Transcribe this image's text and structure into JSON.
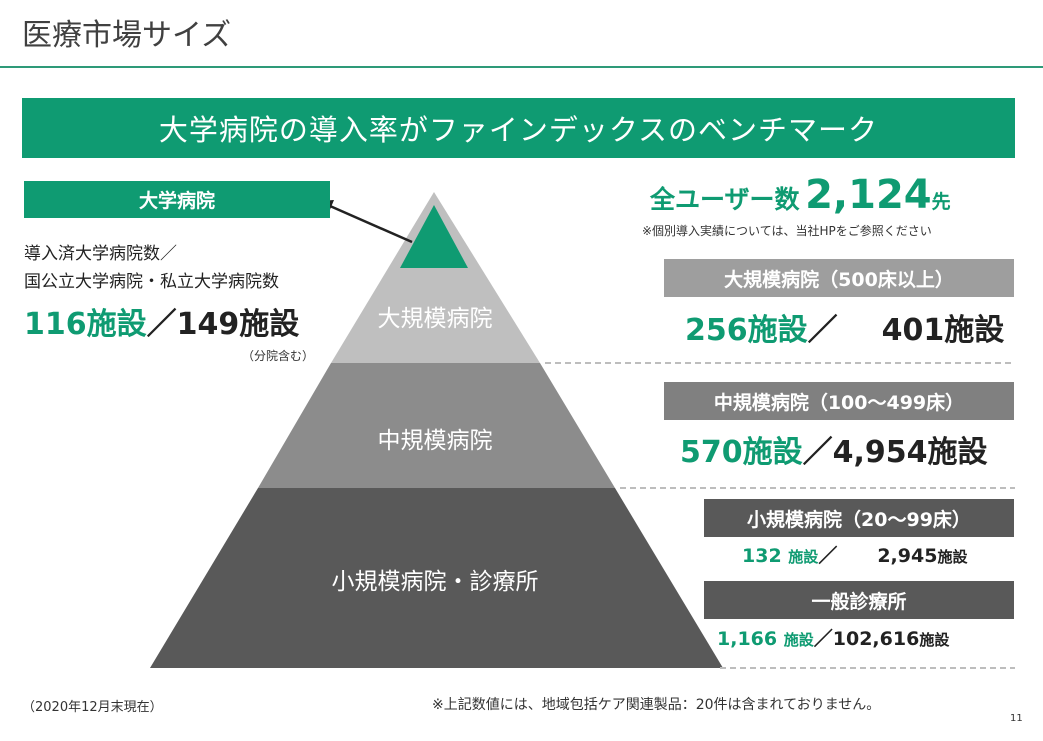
{
  "header": {
    "title": "医療市場サイズ"
  },
  "banner": {
    "text": "大学病院の導入率がファインデックスのベンチマーク"
  },
  "left": {
    "label": "大学病院",
    "desc_line1": "導入済大学病院数／",
    "desc_line2": "国公立大学病院・私立大学病院数",
    "adopted": "116施設",
    "separator": "／",
    "total": "149施設",
    "note": "（分院含む）"
  },
  "pyramid": {
    "top_label": "大規模病院",
    "middle_label": "中規模病院",
    "bottom_label": "小規模病院・診療所"
  },
  "right": {
    "users_prefix": "全ユーザー数",
    "users_count": "2,124",
    "users_suffix": "先",
    "users_note": "※個別導入実績については、当社HPをご参照ください",
    "large": {
      "label": "大規模病院（500床以上）",
      "adopted": "256施設",
      "sep": "／",
      "total": "401施設"
    },
    "medium": {
      "label": "中規模病院（100～499床）",
      "adopted": "570施設",
      "sep": "／",
      "total": "4,954施設"
    },
    "small": {
      "label": "小規模病院（20～99床）",
      "adopted_num": "132",
      "adopted_unit": "施設",
      "sep": "／",
      "total_num": "2,945",
      "total_unit": "施設"
    },
    "clinic": {
      "label": "一般診療所",
      "adopted_num": "1,166",
      "adopted_unit": "施設",
      "sep": "／",
      "total_num": "102,616",
      "total_unit": "施設"
    }
  },
  "footer": {
    "date_note": "（2020年12月末現在）",
    "exclusion_note": "※上記数値には、地域包括ケア関連製品：20件は含まれておりません。",
    "page_number": "11"
  },
  "colors": {
    "brand_green": "#0f9b72",
    "grey_light": "#bfbfbf",
    "grey_mid": "#8c8c8c",
    "grey_dark": "#595959"
  }
}
